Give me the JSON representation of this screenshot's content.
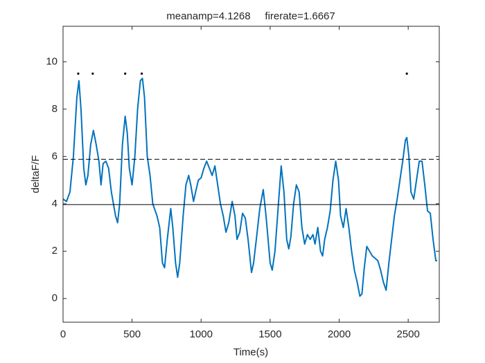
{
  "chart_data": {
    "type": "line",
    "title": "meanamp=4.1268     firerate=1.6667",
    "xlabel": "Time(s)",
    "ylabel": "deltaF/F",
    "xlim": [
      0,
      2725
    ],
    "ylim": [
      -1,
      11.5
    ],
    "xticks": [
      0,
      500,
      1000,
      1500,
      2000,
      2500
    ],
    "yticks": [
      0,
      2,
      4,
      6,
      8,
      10
    ],
    "x": [
      0,
      25,
      50,
      75,
      100,
      115,
      130,
      150,
      165,
      180,
      200,
      220,
      240,
      260,
      275,
      290,
      310,
      330,
      350,
      380,
      395,
      410,
      430,
      450,
      465,
      480,
      500,
      520,
      540,
      560,
      575,
      590,
      610,
      630,
      650,
      680,
      700,
      720,
      735,
      755,
      780,
      795,
      815,
      830,
      845,
      870,
      890,
      910,
      925,
      945,
      960,
      980,
      1000,
      1020,
      1040,
      1060,
      1080,
      1100,
      1120,
      1140,
      1160,
      1180,
      1200,
      1225,
      1245,
      1260,
      1280,
      1300,
      1320,
      1340,
      1365,
      1380,
      1400,
      1425,
      1450,
      1470,
      1485,
      1500,
      1515,
      1535,
      1560,
      1580,
      1600,
      1620,
      1635,
      1650,
      1670,
      1690,
      1710,
      1730,
      1750,
      1770,
      1790,
      1810,
      1825,
      1845,
      1865,
      1880,
      1895,
      1915,
      1935,
      1955,
      1975,
      1995,
      2010,
      2030,
      2050,
      2070,
      2090,
      2110,
      2130,
      2150,
      2165,
      2180,
      2200,
      2220,
      2240,
      2260,
      2280,
      2300,
      2320,
      2340,
      2360,
      2380,
      2400,
      2420,
      2440,
      2460,
      2480,
      2490,
      2505,
      2520,
      2540,
      2560,
      2580,
      2600,
      2620,
      2640,
      2660,
      2680,
      2700,
      2710
    ],
    "series": [
      {
        "color": "#0072bd",
        "values": [
          4.2,
          4.1,
          4.5,
          6,
          8.5,
          9.2,
          8,
          5.5,
          4.8,
          5.2,
          6.5,
          7.1,
          6.5,
          5.8,
          4.8,
          5.7,
          5.8,
          5.5,
          4.5,
          3.5,
          3.2,
          4,
          6.5,
          7.7,
          7,
          5.5,
          4.8,
          6,
          8,
          9.2,
          9.3,
          8.5,
          6,
          5.2,
          4,
          3.5,
          3,
          1.5,
          1.3,
          2.5,
          3.8,
          3,
          1.5,
          0.9,
          1.5,
          3.5,
          4.8,
          5.2,
          4.8,
          4.1,
          4.5,
          5,
          5.1,
          5.5,
          5.8,
          5.5,
          5.2,
          5.6,
          4.8,
          4,
          3.5,
          2.8,
          3.2,
          4.1,
          3.5,
          2.5,
          2.8,
          3.6,
          3.4,
          2.5,
          1.1,
          1.5,
          2.5,
          3.8,
          4.6,
          3.5,
          2.5,
          1.5,
          1.2,
          2,
          4,
          5.6,
          4.5,
          2.5,
          2.1,
          2.6,
          4,
          4.8,
          4.5,
          3,
          2.3,
          2.7,
          2.5,
          2.7,
          2.3,
          3,
          2,
          1.8,
          2.5,
          3,
          3.7,
          5,
          5.8,
          5,
          3.5,
          3,
          3.8,
          3,
          2,
          1.2,
          0.7,
          0.1,
          0.2,
          1.2,
          2.2,
          2,
          1.8,
          1.7,
          1.6,
          1.2,
          0.7,
          0.35,
          1.5,
          2.5,
          3.5,
          4.2,
          5,
          5.8,
          6.7,
          6.8,
          6,
          4.5,
          4.2,
          5,
          5.8,
          5.8,
          4.8,
          3.7,
          3.6,
          2.5,
          1.6,
          1.6
        ]
      }
    ],
    "hlines": [
      {
        "value": 3.97,
        "style": "solid",
        "color": "#000000"
      },
      {
        "value": 5.88,
        "style": "dashed",
        "color": "#000000"
      }
    ],
    "markers": {
      "color": "#000000",
      "x": [
        110,
        215,
        450,
        570,
        2490
      ],
      "values": [
        9.5,
        9.5,
        9.5,
        9.5,
        9.5
      ]
    }
  }
}
